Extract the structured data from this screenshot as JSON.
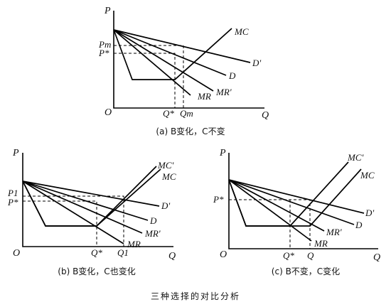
{
  "panels": [
    {
      "id": "a",
      "axis_y": "P",
      "axis_x": "Q",
      "origin": "O",
      "y_ticks": [
        "Pm",
        "P*"
      ],
      "x_ticks": [
        "Q*",
        "Qm"
      ],
      "curves": [
        "MC",
        "D'",
        "D",
        "MR'",
        "MR"
      ],
      "caption": "(a) B变化，C不变"
    },
    {
      "id": "b",
      "axis_y": "P",
      "axis_x": "Q",
      "origin": "O",
      "y_ticks": [
        "P1",
        "P*"
      ],
      "x_ticks": [
        "Q*",
        "Q1"
      ],
      "curves": [
        "MC'",
        "MC",
        "D'",
        "D",
        "MR'",
        "MR"
      ],
      "caption": "(b) B变化，C也变化"
    },
    {
      "id": "c",
      "axis_y": "P",
      "axis_x": "Q",
      "origin": "O",
      "y_ticks": [
        "P*"
      ],
      "x_ticks": [
        "Q*",
        "Q"
      ],
      "curves": [
        "MC'",
        "MC",
        "D'",
        "D",
        "MR'",
        "MR"
      ],
      "caption": "(c) B不变，C变化"
    }
  ],
  "figure_title": "三种选择的对比分析"
}
